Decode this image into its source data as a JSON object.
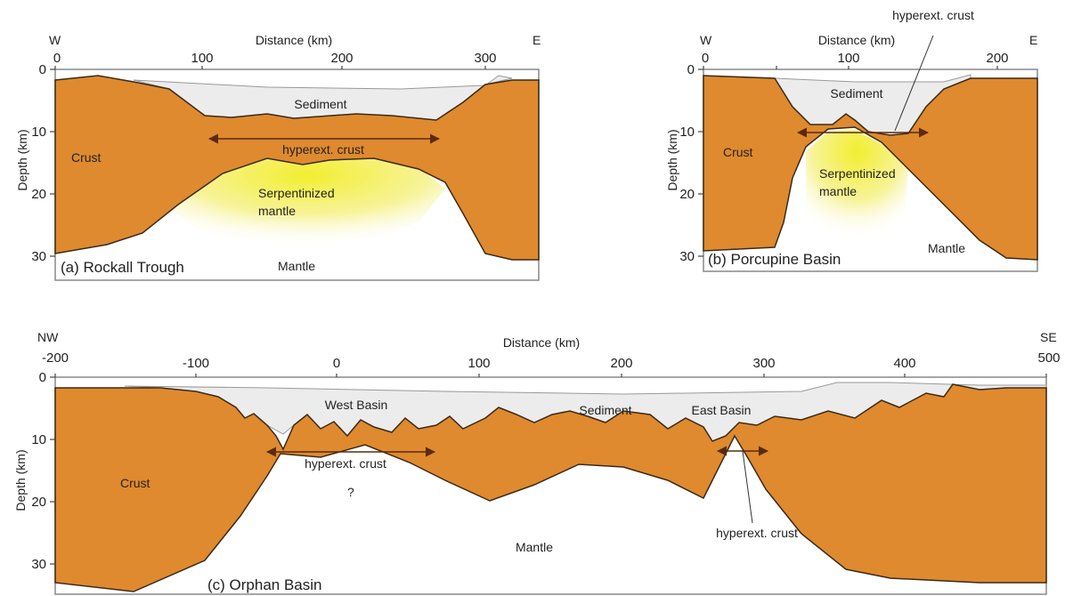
{
  "panels": [
    {
      "label": "(a) Rockall Trough",
      "west": "W",
      "east": "E",
      "x_axis_title": "Distance (km)",
      "y_axis_title": "Depth (km)",
      "xticks": [
        0,
        100,
        200,
        300
      ],
      "yticks": [
        0,
        10,
        20,
        30
      ],
      "labels": {
        "sediment": "Sediment",
        "crust": "Crust",
        "hyperext": "hyperext. crust",
        "serpentinized": [
          "Serpentinized",
          "mantle"
        ],
        "mantle": "Mantle"
      }
    },
    {
      "label": "(b) Porcupine Basin",
      "west": "W",
      "east": "E",
      "x_axis_title": "Distance (km)",
      "y_axis_title": "Depth (km)",
      "xticks": [
        0,
        100,
        200
      ],
      "yticks": [
        0,
        10,
        20,
        30
      ],
      "labels": {
        "sediment": "Sediment",
        "crust": "Crust",
        "hyperext": "hyperext. crust",
        "serpentinized": [
          "Serpentinized",
          "mantle"
        ],
        "mantle": "Mantle"
      }
    },
    {
      "label": "(c) Orphan Basin",
      "west": "NW",
      "east": "SE",
      "x_axis_title": "Distance (km)",
      "y_axis_title": "Depth (km)",
      "xticks": [
        -200,
        -100,
        0,
        100,
        200,
        300,
        400,
        500
      ],
      "yticks": [
        0,
        10,
        20,
        30
      ],
      "labels": {
        "west_basin": "West Basin",
        "sediment": "Sediment",
        "east_basin": "East Basin",
        "hyperext_west": "hyperext. crust",
        "hyperext_east": "hyperext. crust",
        "crust": "Crust",
        "question": "?",
        "mantle": "Mantle"
      }
    }
  ]
}
